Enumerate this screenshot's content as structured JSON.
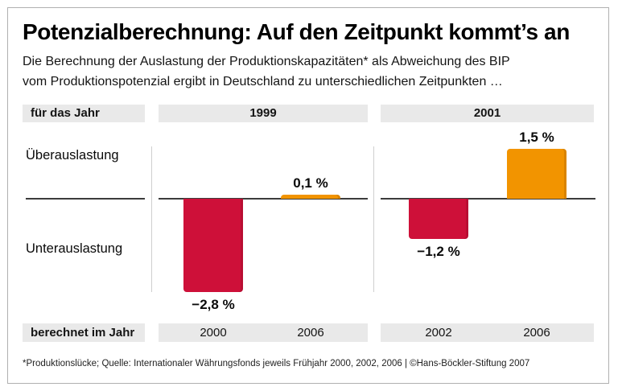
{
  "colors": {
    "negative_bar": "#ce1039",
    "positive_bar": "#f29400",
    "header_box_grey": "#e9e9e9",
    "zero_line": "#3c3c3c",
    "frame_border": "#b0b0b0"
  },
  "chart_data": {
    "type": "bar",
    "title": "Potenzialberechnung: Auf den Zeitpunkt kommt’s an",
    "subtitle_line1": "Die Berechnung der Auslastung der Produktionskapazitäten* als Abweichung des BIP",
    "subtitle_line2": "vom Produktionspotenzial ergibt in Deutschland zu unterschiedlichen Zeitpunkten …",
    "unit": "%",
    "ylim": [
      -3.2,
      2.0
    ],
    "zero_line": 0,
    "positive_region_label": "Überauslastung",
    "negative_region_label": "Unterauslastung",
    "group_header_label": "für das Jahr",
    "bottom_row_label": "berechnet im Jahr",
    "groups": [
      {
        "for_year": "1999",
        "bars": [
          {
            "calculated_in": "2000",
            "value": -2.8,
            "label": "−2,8 %",
            "color": "#ce1039"
          },
          {
            "calculated_in": "2006",
            "value": 0.1,
            "label": "0,1 %",
            "color": "#f29400"
          }
        ]
      },
      {
        "for_year": "2001",
        "bars": [
          {
            "calculated_in": "2002",
            "value": -1.2,
            "label": "−1,2 %",
            "color": "#ce1039"
          },
          {
            "calculated_in": "2006",
            "value": 1.5,
            "label": "1,5 %",
            "color": "#f29400"
          }
        ]
      }
    ],
    "source": "*Produktionslücke; Quelle: Internationaler Währungsfonds jeweils Frühjahr 2000, 2002, 2006 | ©Hans-Böckler-Stiftung 2007"
  }
}
